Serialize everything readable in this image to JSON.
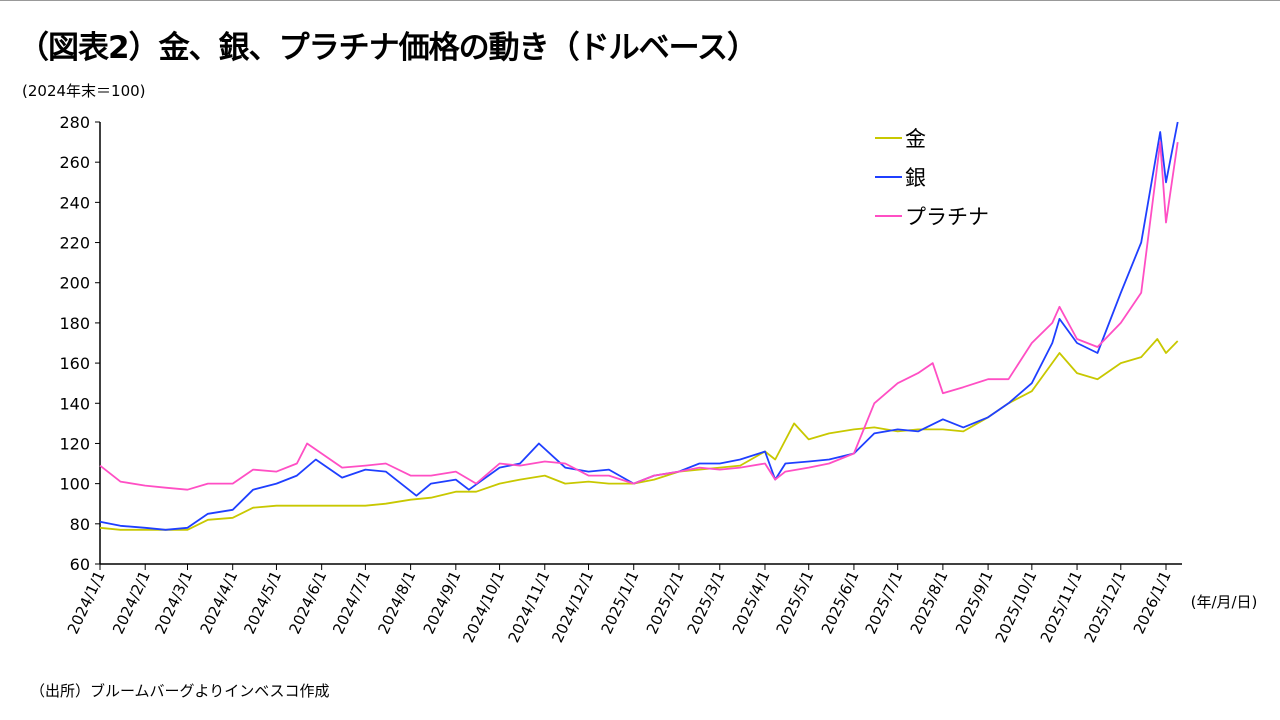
{
  "title": "（図表2）金、銀、プラチナ価格の動き（ドルベース）",
  "unit": "(2024年末＝100)",
  "source": "（出所）ブルームバーグよりインベスコ作成",
  "chart_data": {
    "type": "line",
    "xlabel": "(年/月/日)",
    "ylabel": "",
    "ylim": [
      60,
      280
    ],
    "yticks": [
      60,
      80,
      100,
      120,
      140,
      160,
      180,
      200,
      220,
      240,
      260,
      280
    ],
    "xticks": [
      "2024/1/1",
      "2024/2/1",
      "2024/3/1",
      "2024/4/1",
      "2024/5/1",
      "2024/6/1",
      "2024/7/1",
      "2024/8/1",
      "2024/9/1",
      "2024/10/1",
      "2024/11/1",
      "2024/12/1",
      "2025/1/1",
      "2025/2/1",
      "2025/3/1",
      "2025/4/1",
      "2025/5/1",
      "2025/6/1",
      "2025/7/1",
      "2025/8/1",
      "2025/9/1",
      "2025/10/1",
      "2025/11/1",
      "2025/12/1",
      "2026/1/1"
    ],
    "grid": false,
    "legend": "top-right",
    "series": [
      {
        "name": "金",
        "color": "#c8c800",
        "points": [
          [
            "2024-01-01",
            78
          ],
          [
            "2024-01-15",
            77
          ],
          [
            "2024-02-01",
            77
          ],
          [
            "2024-02-15",
            77
          ],
          [
            "2024-03-01",
            77
          ],
          [
            "2024-03-15",
            82
          ],
          [
            "2024-04-01",
            83
          ],
          [
            "2024-04-15",
            88
          ],
          [
            "2024-05-01",
            89
          ],
          [
            "2024-05-15",
            89
          ],
          [
            "2024-06-01",
            89
          ],
          [
            "2024-06-15",
            89
          ],
          [
            "2024-07-01",
            89
          ],
          [
            "2024-07-15",
            90
          ],
          [
            "2024-08-01",
            92
          ],
          [
            "2024-08-15",
            93
          ],
          [
            "2024-09-01",
            96
          ],
          [
            "2024-09-15",
            96
          ],
          [
            "2024-10-01",
            100
          ],
          [
            "2024-10-15",
            102
          ],
          [
            "2024-11-01",
            104
          ],
          [
            "2024-11-15",
            100
          ],
          [
            "2024-12-01",
            101
          ],
          [
            "2024-12-15",
            100
          ],
          [
            "2025-01-01",
            100
          ],
          [
            "2025-01-15",
            102
          ],
          [
            "2025-02-01",
            106
          ],
          [
            "2025-02-15",
            107
          ],
          [
            "2025-03-01",
            108
          ],
          [
            "2025-03-15",
            109
          ],
          [
            "2025-04-01",
            116
          ],
          [
            "2025-04-08",
            112
          ],
          [
            "2025-04-21",
            130
          ],
          [
            "2025-05-01",
            122
          ],
          [
            "2025-05-15",
            125
          ],
          [
            "2025-06-01",
            127
          ],
          [
            "2025-06-15",
            128
          ],
          [
            "2025-07-01",
            126
          ],
          [
            "2025-07-15",
            127
          ],
          [
            "2025-08-01",
            127
          ],
          [
            "2025-08-15",
            126
          ],
          [
            "2025-09-01",
            133
          ],
          [
            "2025-09-15",
            140
          ],
          [
            "2025-10-01",
            146
          ],
          [
            "2025-10-20",
            165
          ],
          [
            "2025-11-01",
            155
          ],
          [
            "2025-11-15",
            152
          ],
          [
            "2025-12-01",
            160
          ],
          [
            "2025-12-15",
            163
          ],
          [
            "2025-12-26",
            172
          ],
          [
            "2026-01-01",
            165
          ],
          [
            "2026-01-09",
            171
          ]
        ]
      },
      {
        "name": "銀",
        "color": "#1f3fff",
        "points": [
          [
            "2024-01-01",
            81
          ],
          [
            "2024-01-15",
            79
          ],
          [
            "2024-02-01",
            78
          ],
          [
            "2024-02-15",
            77
          ],
          [
            "2024-03-01",
            78
          ],
          [
            "2024-03-15",
            85
          ],
          [
            "2024-04-01",
            87
          ],
          [
            "2024-04-15",
            97
          ],
          [
            "2024-05-01",
            100
          ],
          [
            "2024-05-15",
            104
          ],
          [
            "2024-05-28",
            112
          ],
          [
            "2024-06-15",
            103
          ],
          [
            "2024-07-01",
            107
          ],
          [
            "2024-07-15",
            106
          ],
          [
            "2024-08-05",
            94
          ],
          [
            "2024-08-15",
            100
          ],
          [
            "2024-09-01",
            102
          ],
          [
            "2024-09-10",
            97
          ],
          [
            "2024-10-01",
            108
          ],
          [
            "2024-10-15",
            110
          ],
          [
            "2024-10-28",
            120
          ],
          [
            "2024-11-15",
            108
          ],
          [
            "2024-12-01",
            106
          ],
          [
            "2024-12-15",
            107
          ],
          [
            "2025-01-01",
            100
          ],
          [
            "2025-01-15",
            104
          ],
          [
            "2025-02-01",
            106
          ],
          [
            "2025-02-15",
            110
          ],
          [
            "2025-03-01",
            110
          ],
          [
            "2025-03-15",
            112
          ],
          [
            "2025-04-01",
            116
          ],
          [
            "2025-04-08",
            102
          ],
          [
            "2025-04-15",
            110
          ],
          [
            "2025-05-01",
            111
          ],
          [
            "2025-05-15",
            112
          ],
          [
            "2025-06-01",
            115
          ],
          [
            "2025-06-15",
            125
          ],
          [
            "2025-07-01",
            127
          ],
          [
            "2025-07-15",
            126
          ],
          [
            "2025-08-01",
            132
          ],
          [
            "2025-08-15",
            128
          ],
          [
            "2025-09-01",
            133
          ],
          [
            "2025-09-15",
            140
          ],
          [
            "2025-10-01",
            150
          ],
          [
            "2025-10-15",
            170
          ],
          [
            "2025-10-20",
            182
          ],
          [
            "2025-11-01",
            170
          ],
          [
            "2025-11-15",
            165
          ],
          [
            "2025-12-01",
            195
          ],
          [
            "2025-12-15",
            220
          ],
          [
            "2025-12-28",
            275
          ],
          [
            "2026-01-01",
            250
          ],
          [
            "2026-01-09",
            280
          ]
        ]
      },
      {
        "name": "プラチナ",
        "color": "#ff4fc4",
        "points": [
          [
            "2024-01-01",
            109
          ],
          [
            "2024-01-15",
            101
          ],
          [
            "2024-02-01",
            99
          ],
          [
            "2024-02-15",
            98
          ],
          [
            "2024-03-01",
            97
          ],
          [
            "2024-03-15",
            100
          ],
          [
            "2024-04-01",
            100
          ],
          [
            "2024-04-15",
            107
          ],
          [
            "2024-05-01",
            106
          ],
          [
            "2024-05-15",
            110
          ],
          [
            "2024-05-22",
            120
          ],
          [
            "2024-06-15",
            108
          ],
          [
            "2024-07-01",
            109
          ],
          [
            "2024-07-15",
            110
          ],
          [
            "2024-08-01",
            104
          ],
          [
            "2024-08-15",
            104
          ],
          [
            "2024-09-01",
            106
          ],
          [
            "2024-09-15",
            100
          ],
          [
            "2024-10-01",
            110
          ],
          [
            "2024-10-15",
            109
          ],
          [
            "2024-11-01",
            111
          ],
          [
            "2024-11-15",
            110
          ],
          [
            "2024-12-01",
            104
          ],
          [
            "2024-12-15",
            104
          ],
          [
            "2025-01-01",
            100
          ],
          [
            "2025-01-15",
            104
          ],
          [
            "2025-02-01",
            106
          ],
          [
            "2025-02-15",
            108
          ],
          [
            "2025-03-01",
            107
          ],
          [
            "2025-03-15",
            108
          ],
          [
            "2025-04-01",
            110
          ],
          [
            "2025-04-08",
            102
          ],
          [
            "2025-04-15",
            106
          ],
          [
            "2025-05-01",
            108
          ],
          [
            "2025-05-15",
            110
          ],
          [
            "2025-06-01",
            115
          ],
          [
            "2025-06-15",
            140
          ],
          [
            "2025-07-01",
            150
          ],
          [
            "2025-07-15",
            155
          ],
          [
            "2025-07-25",
            160
          ],
          [
            "2025-08-01",
            145
          ],
          [
            "2025-08-15",
            148
          ],
          [
            "2025-09-01",
            152
          ],
          [
            "2025-09-15",
            152
          ],
          [
            "2025-10-01",
            170
          ],
          [
            "2025-10-15",
            180
          ],
          [
            "2025-10-20",
            188
          ],
          [
            "2025-11-01",
            172
          ],
          [
            "2025-11-15",
            168
          ],
          [
            "2025-12-01",
            180
          ],
          [
            "2025-12-15",
            195
          ],
          [
            "2025-12-28",
            270
          ],
          [
            "2026-01-01",
            230
          ],
          [
            "2026-01-09",
            270
          ]
        ]
      }
    ]
  }
}
